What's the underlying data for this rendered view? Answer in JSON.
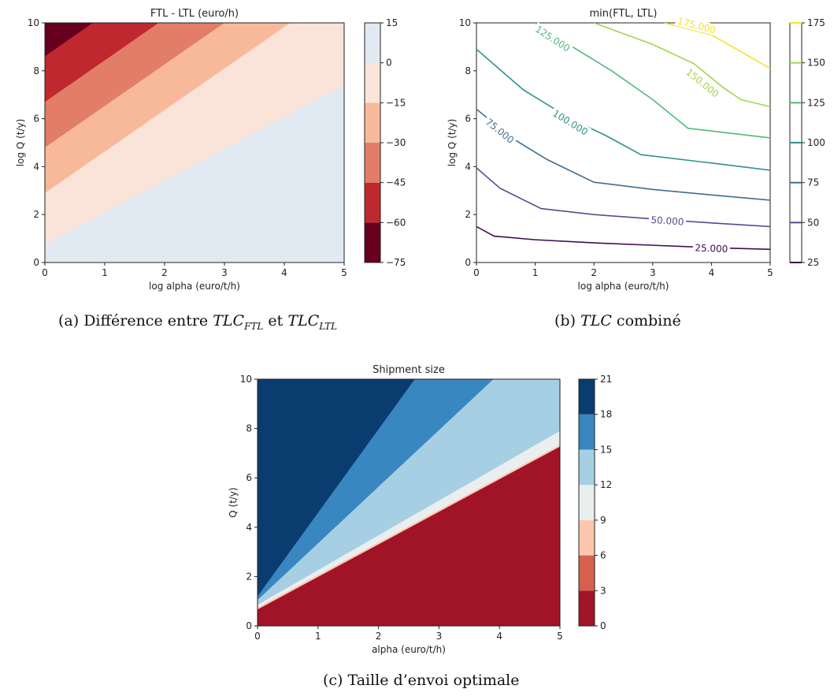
{
  "chart_data": [
    {
      "id": "a",
      "type": "contourf",
      "title": "FTL - LTL (euro/h)",
      "xlabel": "log alpha (euro/t/h)",
      "ylabel": "log Q (t/y)",
      "xlim": [
        0,
        5
      ],
      "ylim": [
        0,
        10
      ],
      "xticks": [
        "0",
        "1",
        "2",
        "3",
        "4",
        "5"
      ],
      "yticks": [
        "0",
        "2",
        "4",
        "6",
        "8",
        "10"
      ],
      "boundary_lines": [
        {
          "range": [
            -75,
            -60
          ],
          "x0": 0,
          "y0": 8.6,
          "x1": 0.8,
          "y1": 10
        },
        {
          "range": [
            -60,
            -45
          ],
          "x0": 0,
          "y0": 6.7,
          "x1": 1.9,
          "y1": 10
        },
        {
          "range": [
            -45,
            -30
          ],
          "x0": 0,
          "y0": 4.8,
          "x1": 3.0,
          "y1": 10
        },
        {
          "range": [
            -30,
            -15
          ],
          "x0": 0,
          "y0": 2.9,
          "x1": 4.1,
          "y1": 10
        },
        {
          "range": [
            -15,
            0
          ],
          "x0": 0,
          "y0": 0.75,
          "x1": 5.0,
          "y1": 7.4
        }
      ],
      "colorbar": {
        "ticks": [
          "15",
          "0",
          "−15",
          "−30",
          "−45",
          "−60",
          "−75"
        ],
        "levels": [
          {
            "range": [
              -75,
              -60
            ],
            "color": "#67001f"
          },
          {
            "range": [
              -60,
              -45
            ],
            "color": "#c0282f"
          },
          {
            "range": [
              -45,
              -30
            ],
            "color": "#e27e67"
          },
          {
            "range": [
              -30,
              -15
            ],
            "color": "#f8b99b"
          },
          {
            "range": [
              -15,
              0
            ],
            "color": "#fae3d9"
          },
          {
            "range": [
              0,
              15
            ],
            "color": "#e1eaf3"
          }
        ]
      }
    },
    {
      "id": "b",
      "type": "contour",
      "title": "min(FTL, LTL)",
      "xlabel": "log alpha (euro/t/h)",
      "ylabel": "log Q (t/y)",
      "xlim": [
        0,
        5
      ],
      "ylim": [
        0,
        10
      ],
      "xticks": [
        "0",
        "1",
        "2",
        "3",
        "4",
        "5"
      ],
      "yticks": [
        "0",
        "2",
        "4",
        "6",
        "8",
        "10"
      ],
      "contours": [
        {
          "level": 25,
          "label": "25.000",
          "color": "#3e0c51",
          "points": [
            [
              0,
              1.5
            ],
            [
              0.3,
              1.1
            ],
            [
              1,
              0.95
            ],
            [
              2,
              0.82
            ],
            [
              3,
              0.72
            ],
            [
              4,
              0.62
            ],
            [
              5,
              0.55
            ]
          ],
          "label_at": [
            4.0,
            0.6
          ]
        },
        {
          "level": 50,
          "label": "50.000",
          "color": "#5b4a8f",
          "points": [
            [
              0,
              3.95
            ],
            [
              0.4,
              3.1
            ],
            [
              1.1,
              2.25
            ],
            [
              2,
              2.0
            ],
            [
              3,
              1.82
            ],
            [
              4,
              1.65
            ],
            [
              5,
              1.5
            ]
          ],
          "label_at": [
            3.25,
            1.75
          ]
        },
        {
          "level": 75,
          "label": "75.000",
          "color": "#3f6f92",
          "points": [
            [
              0,
              6.4
            ],
            [
              0.6,
              5.2
            ],
            [
              1.2,
              4.3
            ],
            [
              2,
              3.35
            ],
            [
              3,
              3.05
            ],
            [
              4,
              2.82
            ],
            [
              5,
              2.6
            ]
          ],
          "label_at": [
            0.4,
            5.5
          ]
        },
        {
          "level": 100,
          "label": "100.000",
          "color": "#2f918b",
          "points": [
            [
              0,
              8.9
            ],
            [
              0.8,
              7.2
            ],
            [
              1.6,
              6.0
            ],
            [
              2.2,
              5.3
            ],
            [
              2.8,
              4.5
            ],
            [
              4,
              4.15
            ],
            [
              5,
              3.85
            ]
          ],
          "label_at": [
            1.6,
            5.85
          ]
        },
        {
          "level": 125,
          "label": "125.000",
          "color": "#4ebb7b",
          "points": [
            [
              1.0,
              10
            ],
            [
              1.5,
              9.2
            ],
            [
              2.3,
              8.0
            ],
            [
              3.0,
              6.8
            ],
            [
              3.6,
              5.6
            ],
            [
              4.3,
              5.4
            ],
            [
              5,
              5.2
            ]
          ],
          "label_at": [
            1.3,
            9.35
          ]
        },
        {
          "level": 150,
          "label": "150.000",
          "color": "#a2d54a",
          "points": [
            [
              2.0,
              10
            ],
            [
              3.0,
              9.1
            ],
            [
              3.7,
              8.3
            ],
            [
              4.2,
              7.3
            ],
            [
              4.5,
              6.8
            ],
            [
              5,
              6.5
            ]
          ],
          "label_at": [
            3.85,
            7.5
          ]
        },
        {
          "level": 175,
          "label": "175.000",
          "color": "#f2e32c",
          "points": [
            [
              3.2,
              10
            ],
            [
              4.0,
              9.5
            ],
            [
              5,
              8.1
            ]
          ],
          "label_at": [
            3.75,
            9.9
          ]
        }
      ],
      "colorbar": {
        "ticks": [
          "175",
          "150",
          "125",
          "100",
          "75",
          "50",
          "25"
        ],
        "colors": [
          "#f2e32c",
          "#a2d54a",
          "#4ebb7b",
          "#2f918b",
          "#3f6f92",
          "#5b4a8f",
          "#3e0c51"
        ]
      }
    },
    {
      "id": "c",
      "type": "contourf",
      "title": "Shipment size",
      "xlabel": "alpha (euro/t/h)",
      "ylabel": "Q (t/y)",
      "xlim": [
        0,
        5
      ],
      "ylim": [
        0,
        10
      ],
      "xticks": [
        "0",
        "1",
        "2",
        "3",
        "4",
        "5"
      ],
      "yticks": [
        "0",
        "2",
        "4",
        "6",
        "8",
        "10"
      ],
      "boundary_lines": [
        {
          "between": [
            "0-3",
            "9-12"
          ],
          "x0": 0,
          "y0": 0.7,
          "x1": 5.0,
          "y1": 7.3
        },
        {
          "between": [
            "9-12",
            "12-15"
          ],
          "x0": 0,
          "y0": 0.85,
          "x1": 5.0,
          "y1": 7.9
        },
        {
          "between": [
            "12-15",
            "15-18"
          ],
          "x0": 0,
          "y0": 1.05,
          "x1": 3.9,
          "y1": 10
        },
        {
          "between": [
            "15-18",
            "18-21"
          ],
          "x0": 0,
          "y0": 1.2,
          "x1": 2.6,
          "y1": 10
        }
      ],
      "colorbar": {
        "ticks": [
          "21",
          "18",
          "15",
          "12",
          "9",
          "6",
          "3",
          "0"
        ],
        "levels": [
          {
            "range": [
              0,
              3
            ],
            "color": "#a11327"
          },
          {
            "range": [
              3,
              6
            ],
            "color": "#d6604d"
          },
          {
            "range": [
              6,
              9
            ],
            "color": "#fbc6ad"
          },
          {
            "range": [
              9,
              12
            ],
            "color": "#eaeeef"
          },
          {
            "range": [
              12,
              15
            ],
            "color": "#a7cfe4"
          },
          {
            "range": [
              15,
              18
            ],
            "color": "#3987c0"
          },
          {
            "range": [
              18,
              21
            ],
            "color": "#0b3c70"
          }
        ]
      }
    }
  ],
  "captions": {
    "a": {
      "prefix": "(a) Différence entre",
      "term1": "TLC",
      "sub1": "FTL",
      "mid": "et",
      "term2": "TLC",
      "sub2": "LTL"
    },
    "b": {
      "prefix": "(b)",
      "term": "TLC",
      "suffix": "combiné"
    },
    "c": {
      "text": "(c) Taille d’envoi optimale"
    }
  }
}
